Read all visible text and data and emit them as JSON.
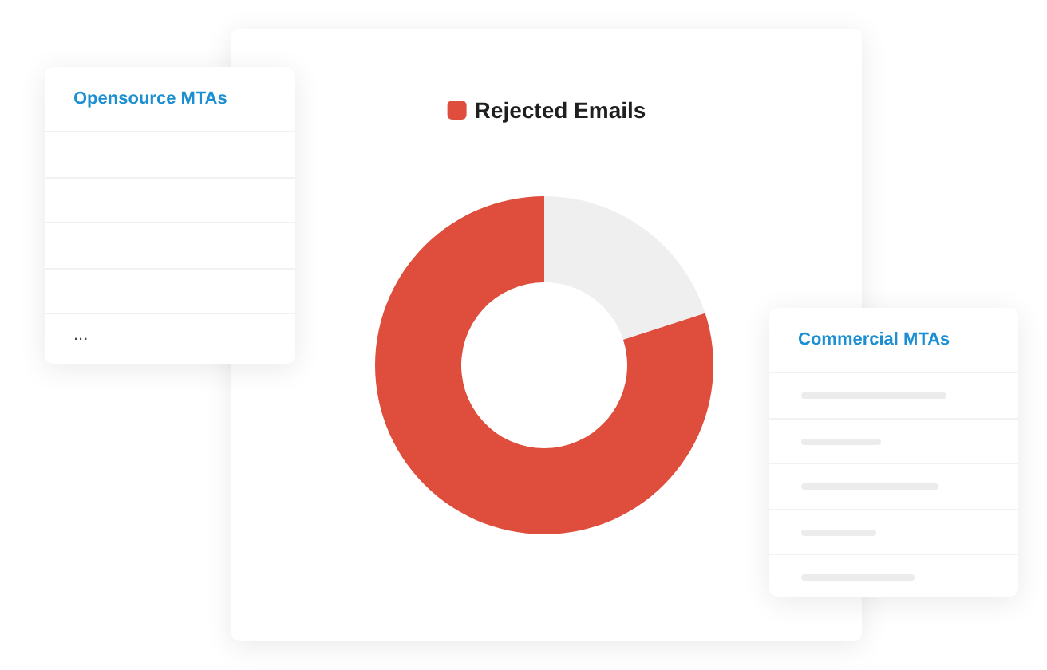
{
  "chart_data": [
    {
      "type": "donut",
      "categories": [
        "Rejected Emails",
        null
      ],
      "values": [
        80,
        20
      ],
      "colors": [
        "#df4e3c",
        "#efefef"
      ],
      "legend": "top"
    },
    {
      "type": "other",
      "title": "Opensource MTAs",
      "categories": [
        null,
        null,
        null,
        null,
        "..."
      ]
    },
    {
      "type": "other",
      "title": "Commercial MTAs",
      "categories": [
        null,
        null,
        null,
        null,
        null
      ]
    }
  ]
}
